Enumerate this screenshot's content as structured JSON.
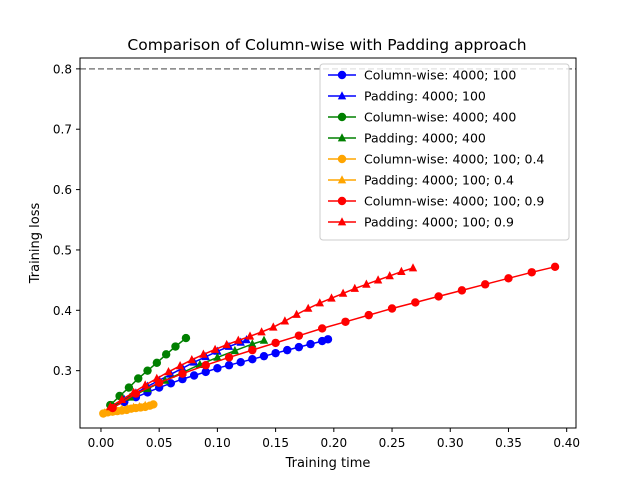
{
  "chart_data": {
    "type": "line",
    "title": "Comparison of Column-wise with Padding approach",
    "xlabel": "Training time",
    "ylabel": "Training loss",
    "xlim": [
      -0.018,
      0.408
    ],
    "ylim": [
      0.205,
      0.818
    ],
    "xticks": [
      0.0,
      0.05,
      0.1,
      0.15,
      0.2,
      0.25,
      0.3,
      0.35,
      0.4
    ],
    "xtick_labels": [
      "0.00",
      "0.05",
      "0.10",
      "0.15",
      "0.20",
      "0.25",
      "0.30",
      "0.35",
      "0.40"
    ],
    "yticks": [
      0.3,
      0.4,
      0.5,
      0.6,
      0.7,
      0.8
    ],
    "ytick_labels": [
      "0.3",
      "0.4",
      "0.5",
      "0.6",
      "0.7",
      "0.8"
    ],
    "hline": {
      "y": 0.8,
      "color": "#808080",
      "style": "dashed"
    },
    "legend_position": "top-right",
    "grid": false,
    "series": [
      {
        "name": "Column-wise: 4000; 100",
        "color": "#0000ff",
        "marker": "circle",
        "x": [
          0.01,
          0.02,
          0.03,
          0.04,
          0.05,
          0.06,
          0.07,
          0.08,
          0.09,
          0.1,
          0.11,
          0.12,
          0.13,
          0.14,
          0.15,
          0.16,
          0.17,
          0.18,
          0.19,
          0.195
        ],
        "y": [
          0.24,
          0.248,
          0.256,
          0.264,
          0.272,
          0.279,
          0.286,
          0.292,
          0.298,
          0.304,
          0.309,
          0.314,
          0.319,
          0.324,
          0.329,
          0.334,
          0.339,
          0.344,
          0.349,
          0.352
        ]
      },
      {
        "name": "Padding: 4000; 100",
        "color": "#0000ff",
        "marker": "triangle",
        "x": [
          0.01,
          0.02,
          0.03,
          0.04,
          0.05,
          0.06,
          0.07,
          0.08,
          0.09,
          0.1,
          0.11,
          0.12,
          0.125
        ],
        "y": [
          0.241,
          0.252,
          0.263,
          0.274,
          0.284,
          0.294,
          0.304,
          0.314,
          0.323,
          0.332,
          0.34,
          0.347,
          0.351
        ]
      },
      {
        "name": "Column-wise: 4000; 400",
        "color": "#008000",
        "marker": "circle",
        "x": [
          0.008,
          0.016,
          0.024,
          0.032,
          0.04,
          0.048,
          0.056,
          0.064,
          0.073
        ],
        "y": [
          0.243,
          0.258,
          0.272,
          0.287,
          0.3,
          0.313,
          0.327,
          0.34,
          0.354
        ]
      },
      {
        "name": "Padding: 4000; 400",
        "color": "#008000",
        "marker": "triangle",
        "x": [
          0.01,
          0.025,
          0.04,
          0.055,
          0.07,
          0.085,
          0.1,
          0.115,
          0.13,
          0.14
        ],
        "y": [
          0.242,
          0.256,
          0.27,
          0.284,
          0.297,
          0.31,
          0.322,
          0.333,
          0.344,
          0.35
        ]
      },
      {
        "name": "Column-wise: 4000; 100; 0.4",
        "color": "#ffa500",
        "marker": "circle",
        "x": [
          0.002,
          0.006,
          0.01,
          0.014,
          0.018,
          0.022,
          0.026,
          0.03,
          0.034,
          0.038,
          0.042,
          0.045
        ],
        "y": [
          0.229,
          0.231,
          0.232,
          0.233,
          0.234,
          0.235,
          0.237,
          0.238,
          0.239,
          0.24,
          0.242,
          0.244
        ]
      },
      {
        "name": "Padding: 4000; 100; 0.4",
        "color": "#ffa500",
        "marker": "triangle",
        "x": [
          0.003,
          0.008,
          0.013,
          0.018,
          0.023,
          0.028,
          0.033,
          0.038
        ],
        "y": [
          0.23,
          0.232,
          0.234,
          0.236,
          0.237,
          0.239,
          0.24,
          0.242
        ]
      },
      {
        "name": "Column-wise: 4000; 100; 0.9",
        "color": "#ff0000",
        "marker": "circle",
        "x": [
          0.01,
          0.03,
          0.05,
          0.07,
          0.09,
          0.11,
          0.13,
          0.15,
          0.17,
          0.19,
          0.21,
          0.23,
          0.25,
          0.27,
          0.29,
          0.31,
          0.33,
          0.35,
          0.37,
          0.39
        ],
        "y": [
          0.238,
          0.262,
          0.28,
          0.295,
          0.309,
          0.322,
          0.334,
          0.346,
          0.358,
          0.37,
          0.381,
          0.392,
          0.403,
          0.413,
          0.423,
          0.433,
          0.443,
          0.453,
          0.463,
          0.472
        ]
      },
      {
        "name": "Padding: 4000; 100; 0.9",
        "color": "#ff0000",
        "marker": "triangle",
        "x": [
          0.008,
          0.018,
          0.028,
          0.038,
          0.048,
          0.058,
          0.068,
          0.078,
          0.088,
          0.098,
          0.108,
          0.118,
          0.128,
          0.138,
          0.148,
          0.158,
          0.168,
          0.178,
          0.188,
          0.198,
          0.208,
          0.218,
          0.228,
          0.238,
          0.248,
          0.258,
          0.268
        ],
        "y": [
          0.24,
          0.252,
          0.264,
          0.276,
          0.287,
          0.298,
          0.308,
          0.318,
          0.327,
          0.335,
          0.343,
          0.35,
          0.357,
          0.364,
          0.372,
          0.382,
          0.393,
          0.403,
          0.412,
          0.42,
          0.428,
          0.436,
          0.443,
          0.45,
          0.457,
          0.464,
          0.47
        ]
      }
    ]
  }
}
